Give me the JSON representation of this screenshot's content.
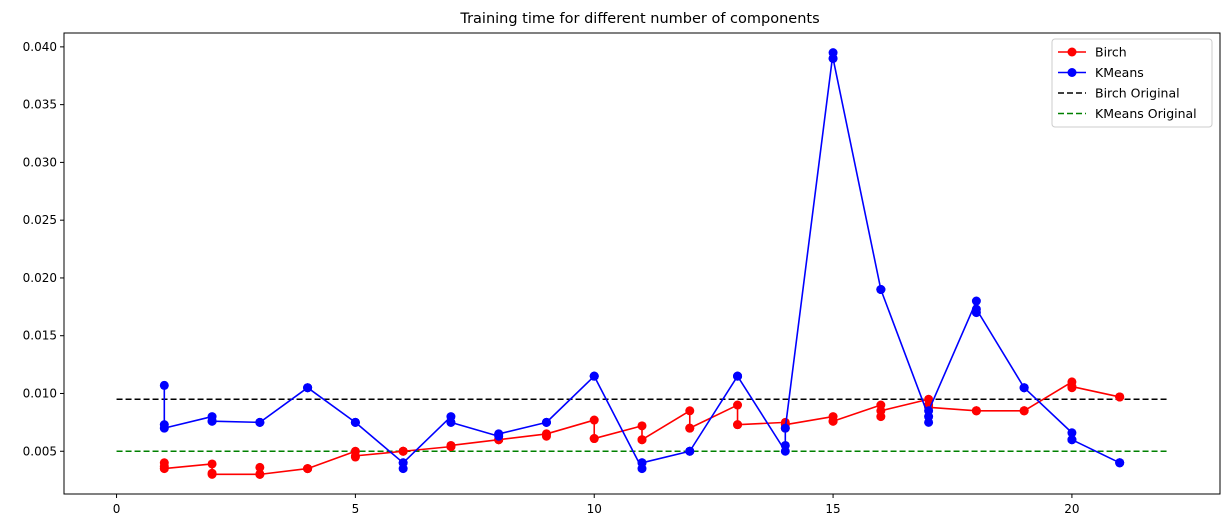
{
  "chart_data": {
    "type": "line",
    "title": "Training time for different number of components",
    "xlabel": "",
    "ylabel": "",
    "xlim": [
      -1.1,
      23.1
    ],
    "ylim": [
      0.0013,
      0.0412
    ],
    "xticks": [
      0,
      5,
      10,
      15,
      20
    ],
    "yticks": [
      0.005,
      0.01,
      0.015,
      0.02,
      0.025,
      0.03,
      0.035,
      0.04
    ],
    "ytick_labels": [
      "0.005",
      "0.010",
      "0.015",
      "0.020",
      "0.025",
      "0.030",
      "0.035",
      "0.040"
    ],
    "grid": false,
    "legend_position": "top-right",
    "series": [
      {
        "name": "Birch",
        "color": "#ff0000",
        "style": "solid",
        "marker": "circle",
        "x": [
          1,
          1,
          1,
          2,
          2,
          2,
          3,
          3,
          3,
          4,
          4,
          4,
          5,
          5,
          5,
          6,
          6,
          6,
          7,
          7,
          7,
          8,
          8,
          8,
          9,
          9,
          9,
          10,
          10,
          10,
          11,
          11,
          11,
          12,
          12,
          12,
          13,
          13,
          13,
          14,
          14,
          14,
          15,
          15,
          15,
          16,
          16,
          16,
          17,
          17,
          17,
          18,
          18,
          18,
          19,
          19,
          19,
          20,
          20,
          20,
          21,
          21,
          21
        ],
        "y": [
          0.004,
          0.0037,
          0.0035,
          0.0039,
          0.0031,
          0.003,
          0.003,
          0.0036,
          0.003,
          0.0035,
          0.0035,
          0.0035,
          0.005,
          0.0045,
          0.0046,
          0.005,
          0.005,
          0.005,
          0.0054,
          0.0054,
          0.0055,
          0.006,
          0.006,
          0.006,
          0.0065,
          0.0063,
          0.0065,
          0.0077,
          0.0061,
          0.0061,
          0.0072,
          0.006,
          0.006,
          0.0085,
          0.007,
          0.007,
          0.009,
          0.0073,
          0.0073,
          0.0075,
          0.007,
          0.0073,
          0.008,
          0.0076,
          0.0076,
          0.009,
          0.008,
          0.0085,
          0.0095,
          0.009,
          0.0088,
          0.0085,
          0.0085,
          0.0085,
          0.0085,
          0.0085,
          0.0085,
          0.011,
          0.0105,
          0.0106,
          0.0097,
          0.0097,
          0.0097
        ]
      },
      {
        "name": "KMeans",
        "color": "#0000ff",
        "style": "solid",
        "marker": "circle",
        "x": [
          1,
          1,
          1,
          2,
          2,
          2,
          3,
          3,
          3,
          4,
          4,
          4,
          5,
          5,
          5,
          6,
          6,
          6,
          7,
          7,
          7,
          8,
          8,
          8,
          9,
          9,
          9,
          10,
          10,
          10,
          11,
          11,
          11,
          12,
          12,
          12,
          13,
          13,
          13,
          14,
          14,
          14,
          15,
          15,
          15,
          16,
          16,
          16,
          17,
          17,
          17,
          18,
          18,
          18,
          19,
          19,
          19,
          20,
          20,
          20,
          21,
          21,
          21
        ],
        "y": [
          0.0107,
          0.0073,
          0.007,
          0.008,
          0.0076,
          0.0076,
          0.0075,
          0.0075,
          0.0075,
          0.0105,
          0.0105,
          0.0105,
          0.0075,
          0.0075,
          0.0075,
          0.004,
          0.0035,
          0.004,
          0.008,
          0.0075,
          0.0075,
          0.0063,
          0.0065,
          0.0065,
          0.0075,
          0.0075,
          0.0075,
          0.0115,
          0.0115,
          0.0115,
          0.0035,
          0.004,
          0.004,
          0.005,
          0.005,
          0.005,
          0.0115,
          0.0115,
          0.0115,
          0.005,
          0.0055,
          0.007,
          0.0395,
          0.039,
          0.039,
          0.019,
          0.019,
          0.019,
          0.008,
          0.0075,
          0.0085,
          0.018,
          0.017,
          0.0173,
          0.0105,
          0.0105,
          0.0105,
          0.0066,
          0.006,
          0.006,
          0.004,
          0.004,
          0.004
        ]
      },
      {
        "name": "Birch Original",
        "color": "#000000",
        "style": "dashed",
        "x": [
          0,
          22
        ],
        "y": [
          0.0095,
          0.0095
        ]
      },
      {
        "name": "KMeans Original",
        "color": "#008000",
        "style": "dashed",
        "x": [
          0,
          22
        ],
        "y": [
          0.005,
          0.005
        ]
      }
    ]
  }
}
